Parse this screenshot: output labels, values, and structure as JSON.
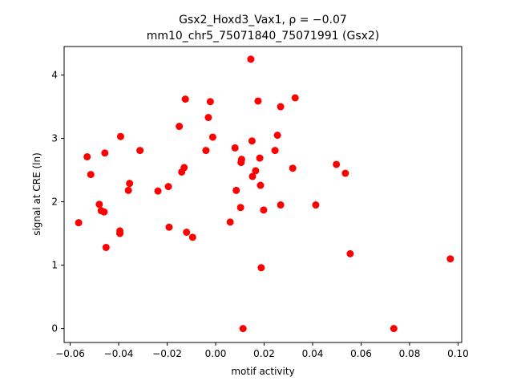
{
  "chart_data": {
    "type": "scatter",
    "title_line1": "Gsx2_Hoxd3_Vax1, ρ = −0.07",
    "title_line2": "mm10_chr5_75071840_75071991 (Gsx2)",
    "xlabel": "motif activity",
    "ylabel": "signal at CRE (ln)",
    "xlim": [
      -0.0625,
      0.1015
    ],
    "ylim": [
      -0.22,
      4.45
    ],
    "xticks": [
      -0.06,
      -0.04,
      -0.02,
      0.0,
      0.02,
      0.04,
      0.06,
      0.08,
      0.1
    ],
    "xtick_labels": [
      "−0.06",
      "−0.04",
      "−0.02",
      "0.00",
      "0.02",
      "0.04",
      "0.06",
      "0.08",
      "0.10"
    ],
    "yticks": [
      0,
      1,
      2,
      3,
      4
    ],
    "ytick_labels": [
      "0",
      "1",
      "2",
      "3",
      "4"
    ],
    "marker_color": "#ff0000",
    "points": [
      {
        "x": -0.0565,
        "y": 1.67
      },
      {
        "x": -0.053,
        "y": 2.71
      },
      {
        "x": -0.0515,
        "y": 2.43
      },
      {
        "x": -0.048,
        "y": 1.96
      },
      {
        "x": -0.0472,
        "y": 1.86
      },
      {
        "x": -0.046,
        "y": 1.84
      },
      {
        "x": -0.0457,
        "y": 2.77
      },
      {
        "x": -0.0452,
        "y": 1.28
      },
      {
        "x": -0.0395,
        "y": 1.54
      },
      {
        "x": -0.0395,
        "y": 1.5
      },
      {
        "x": -0.0392,
        "y": 3.03
      },
      {
        "x": -0.036,
        "y": 2.18
      },
      {
        "x": -0.0355,
        "y": 2.29
      },
      {
        "x": -0.0312,
        "y": 2.81
      },
      {
        "x": -0.0238,
        "y": 2.17
      },
      {
        "x": -0.0195,
        "y": 2.24
      },
      {
        "x": -0.0192,
        "y": 1.6
      },
      {
        "x": -0.015,
        "y": 3.19
      },
      {
        "x": -0.014,
        "y": 2.47
      },
      {
        "x": -0.013,
        "y": 2.54
      },
      {
        "x": -0.0125,
        "y": 3.62
      },
      {
        "x": -0.012,
        "y": 1.52
      },
      {
        "x": -0.0095,
        "y": 1.44
      },
      {
        "x": -0.004,
        "y": 2.81
      },
      {
        "x": -0.003,
        "y": 3.33
      },
      {
        "x": -0.0022,
        "y": 3.58
      },
      {
        "x": -0.0012,
        "y": 3.02
      },
      {
        "x": 0.006,
        "y": 1.68
      },
      {
        "x": 0.008,
        "y": 2.85
      },
      {
        "x": 0.0085,
        "y": 2.18
      },
      {
        "x": 0.0103,
        "y": 1.91
      },
      {
        "x": 0.0105,
        "y": 2.62
      },
      {
        "x": 0.0107,
        "y": 2.67
      },
      {
        "x": 0.0113,
        "y": 0.0
      },
      {
        "x": 0.0145,
        "y": 4.25
      },
      {
        "x": 0.015,
        "y": 2.96
      },
      {
        "x": 0.0152,
        "y": 2.4
      },
      {
        "x": 0.0165,
        "y": 2.49
      },
      {
        "x": 0.0175,
        "y": 3.59
      },
      {
        "x": 0.0182,
        "y": 2.69
      },
      {
        "x": 0.0185,
        "y": 2.26
      },
      {
        "x": 0.0188,
        "y": 0.96
      },
      {
        "x": 0.0198,
        "y": 1.87
      },
      {
        "x": 0.0245,
        "y": 2.81
      },
      {
        "x": 0.0255,
        "y": 3.05
      },
      {
        "x": 0.0268,
        "y": 3.5
      },
      {
        "x": 0.0268,
        "y": 1.95
      },
      {
        "x": 0.0318,
        "y": 2.53
      },
      {
        "x": 0.0328,
        "y": 3.64
      },
      {
        "x": 0.0413,
        "y": 1.95
      },
      {
        "x": 0.0498,
        "y": 2.59
      },
      {
        "x": 0.0535,
        "y": 2.45
      },
      {
        "x": 0.0555,
        "y": 1.18
      },
      {
        "x": 0.0735,
        "y": 0.0
      },
      {
        "x": 0.0968,
        "y": 1.1
      }
    ]
  }
}
